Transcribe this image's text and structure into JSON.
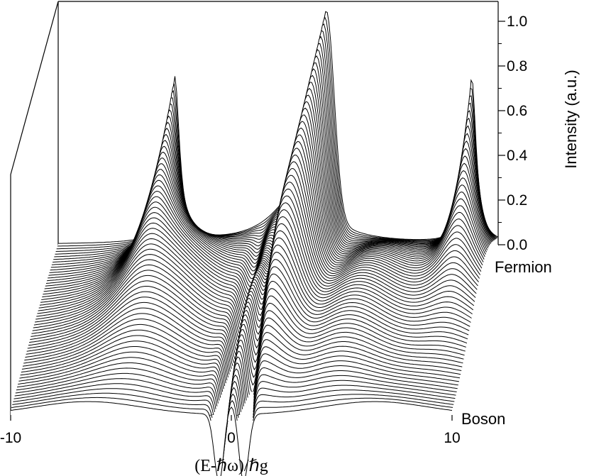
{
  "chart_data": {
    "type": "waterfall-3d",
    "xlabel": "(E-ℏω)/ℏg",
    "ylabel": "Intensity (a.u.)",
    "depth_axis_labels": {
      "back": "Fermion",
      "front": "Boson"
    },
    "xlim": [
      -10,
      10
    ],
    "ylim": [
      0,
      1.0
    ],
    "x_ticks": [
      -10,
      0,
      10
    ],
    "x_tick_labels": [
      "-10",
      "0",
      "10"
    ],
    "y_ticks": [
      0.0,
      0.2,
      0.4,
      0.6,
      0.8,
      1.0
    ],
    "y_tick_labels": [
      "0.0",
      "0.2",
      "0.4",
      "0.6",
      "0.8",
      "1.0"
    ],
    "n_traces": 60,
    "back_trace_peaks": [
      {
        "x": -4.7,
        "intensity": 0.74
      },
      {
        "x": 2.2,
        "intensity": 1.0
      },
      {
        "x": 8.8,
        "intensity": 0.74
      }
    ],
    "front_trace_features": [
      {
        "x": -0.5,
        "intensity": 0.0,
        "note": "dip"
      },
      {
        "x": 0.0,
        "intensity": 0.35
      },
      {
        "x": 0.5,
        "intensity": 0.0,
        "note": "dip"
      }
    ],
    "grid": false
  }
}
